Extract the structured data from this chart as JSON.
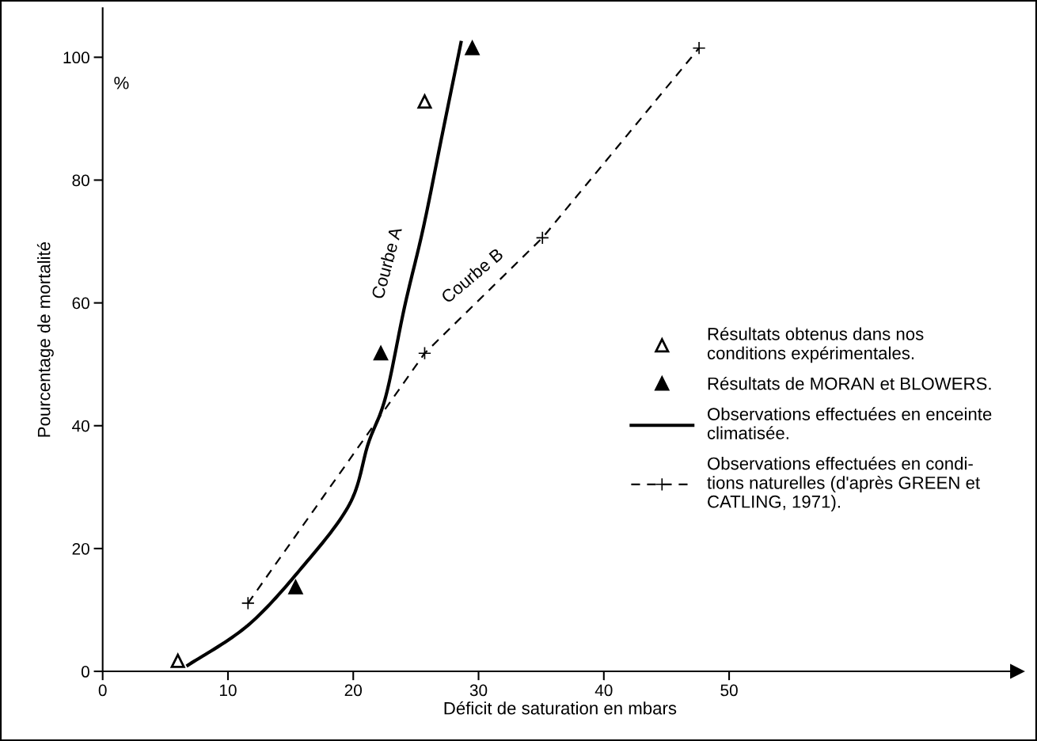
{
  "chart_data": {
    "type": "scatter",
    "xlabel": "Déficit de saturation en mbars",
    "ylabel": "Pourcentage de mortalité",
    "xlim": [
      0,
      73
    ],
    "ylim": [
      0,
      108
    ],
    "xticks": [
      0,
      10,
      20,
      30,
      40,
      50
    ],
    "yticks": [
      0,
      20,
      40,
      60,
      80,
      100
    ],
    "grid": false,
    "legend": "right",
    "series": [
      {
        "name": "Résultats obtenus dans nos\nconditions expérimentales.",
        "marker": "triangle",
        "color": "#ffffff",
        "x": [
          6.0,
          25.7
        ],
        "values": [
          1.7,
          92.8
        ]
      },
      {
        "name": "Résultats de MORAN et BLOWERS.",
        "marker": "triangle",
        "color": "#000000",
        "x": [
          15.4,
          22.2,
          29.5
        ],
        "values": [
          13.7,
          51.8,
          101.5
        ]
      },
      {
        "name": "Observations effectuées en enceinte\nclimatisée.",
        "type": "line",
        "marker": "none",
        "line_style": "solid",
        "color": "#000000",
        "x": [
          6.8,
          11.6,
          15.9,
          19.7,
          21.2,
          22.6,
          24.1,
          25.6,
          27.1,
          28.6
        ],
        "values": [
          1.0,
          7.5,
          16.9,
          27.2,
          37.1,
          44.8,
          59.4,
          72.3,
          87.4,
          102.4
        ]
      },
      {
        "name": "Observations effectuées en condi-\ntions naturelles (d'après GREEN et\nCATLING, 1971).",
        "type": "line",
        "marker": "cross",
        "line_style": "dashed",
        "color": "#000000",
        "x": [
          11.6,
          25.7,
          35.1,
          47.6
        ],
        "values": [
          11.1,
          51.8,
          70.6,
          101.5
        ]
      }
    ],
    "annotations": [
      "Courbe A",
      "Courbe B",
      "%"
    ]
  }
}
